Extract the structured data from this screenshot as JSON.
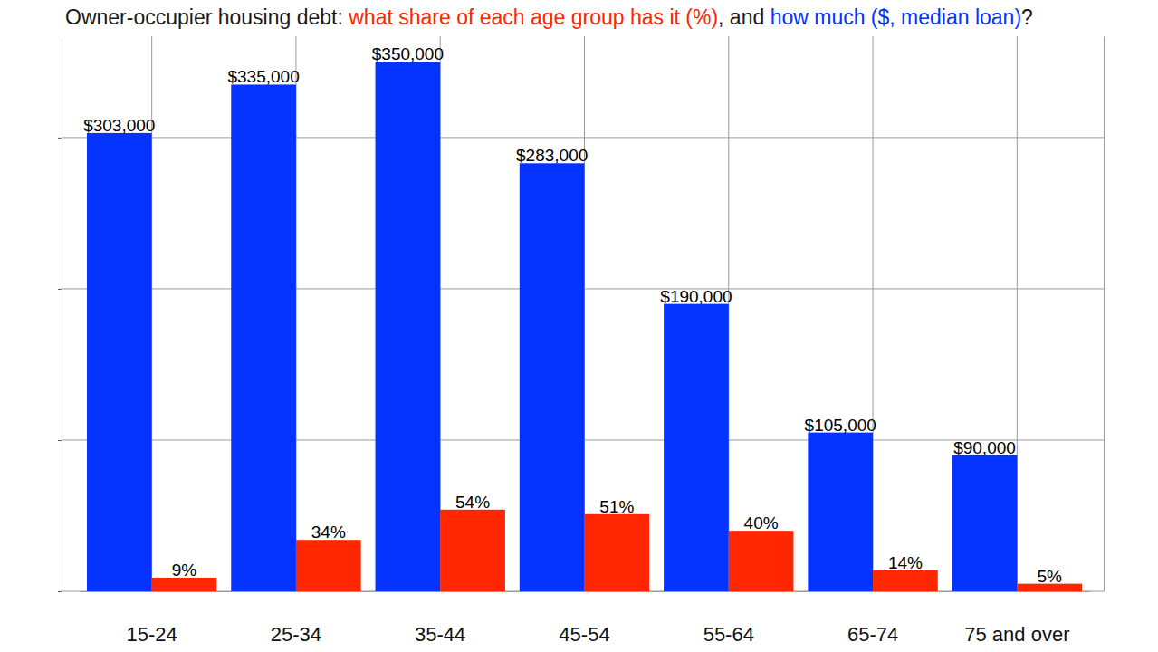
{
  "chart_data": {
    "type": "bar",
    "title": "Owner-occupier housing debt: what share of each age group has it (%), and how much ($, median loan)?",
    "categories": [
      "15-24",
      "25-34",
      "35-44",
      "45-54",
      "55-64",
      "65-74",
      "75 and over"
    ],
    "series": [
      {
        "name": "how much ($, median loan)",
        "color": "#0433ff",
        "values": [
          303000,
          335000,
          350000,
          283000,
          190000,
          105000,
          90000
        ],
        "value_labels": [
          "$303,000",
          "$335,000",
          "$350,000",
          "$283,000",
          "$190,000",
          "$105,000",
          "$90,000"
        ]
      },
      {
        "name": "what share of each age group has it (%)",
        "color": "#ff2600",
        "axis": "y2",
        "values": [
          9,
          34,
          54,
          51,
          40,
          14,
          5
        ],
        "value_labels": [
          "9%",
          "34%",
          "54%",
          "51%",
          "40%",
          "14%",
          "5%"
        ]
      }
    ],
    "ylim": [
      0,
      367000
    ],
    "yticks": [
      0,
      100000,
      200000,
      300000
    ],
    "y2lim": [
      0,
      367
    ],
    "y2ticks": [],
    "grid": true,
    "data_labels": true,
    "tick_labels": "x"
  }
}
